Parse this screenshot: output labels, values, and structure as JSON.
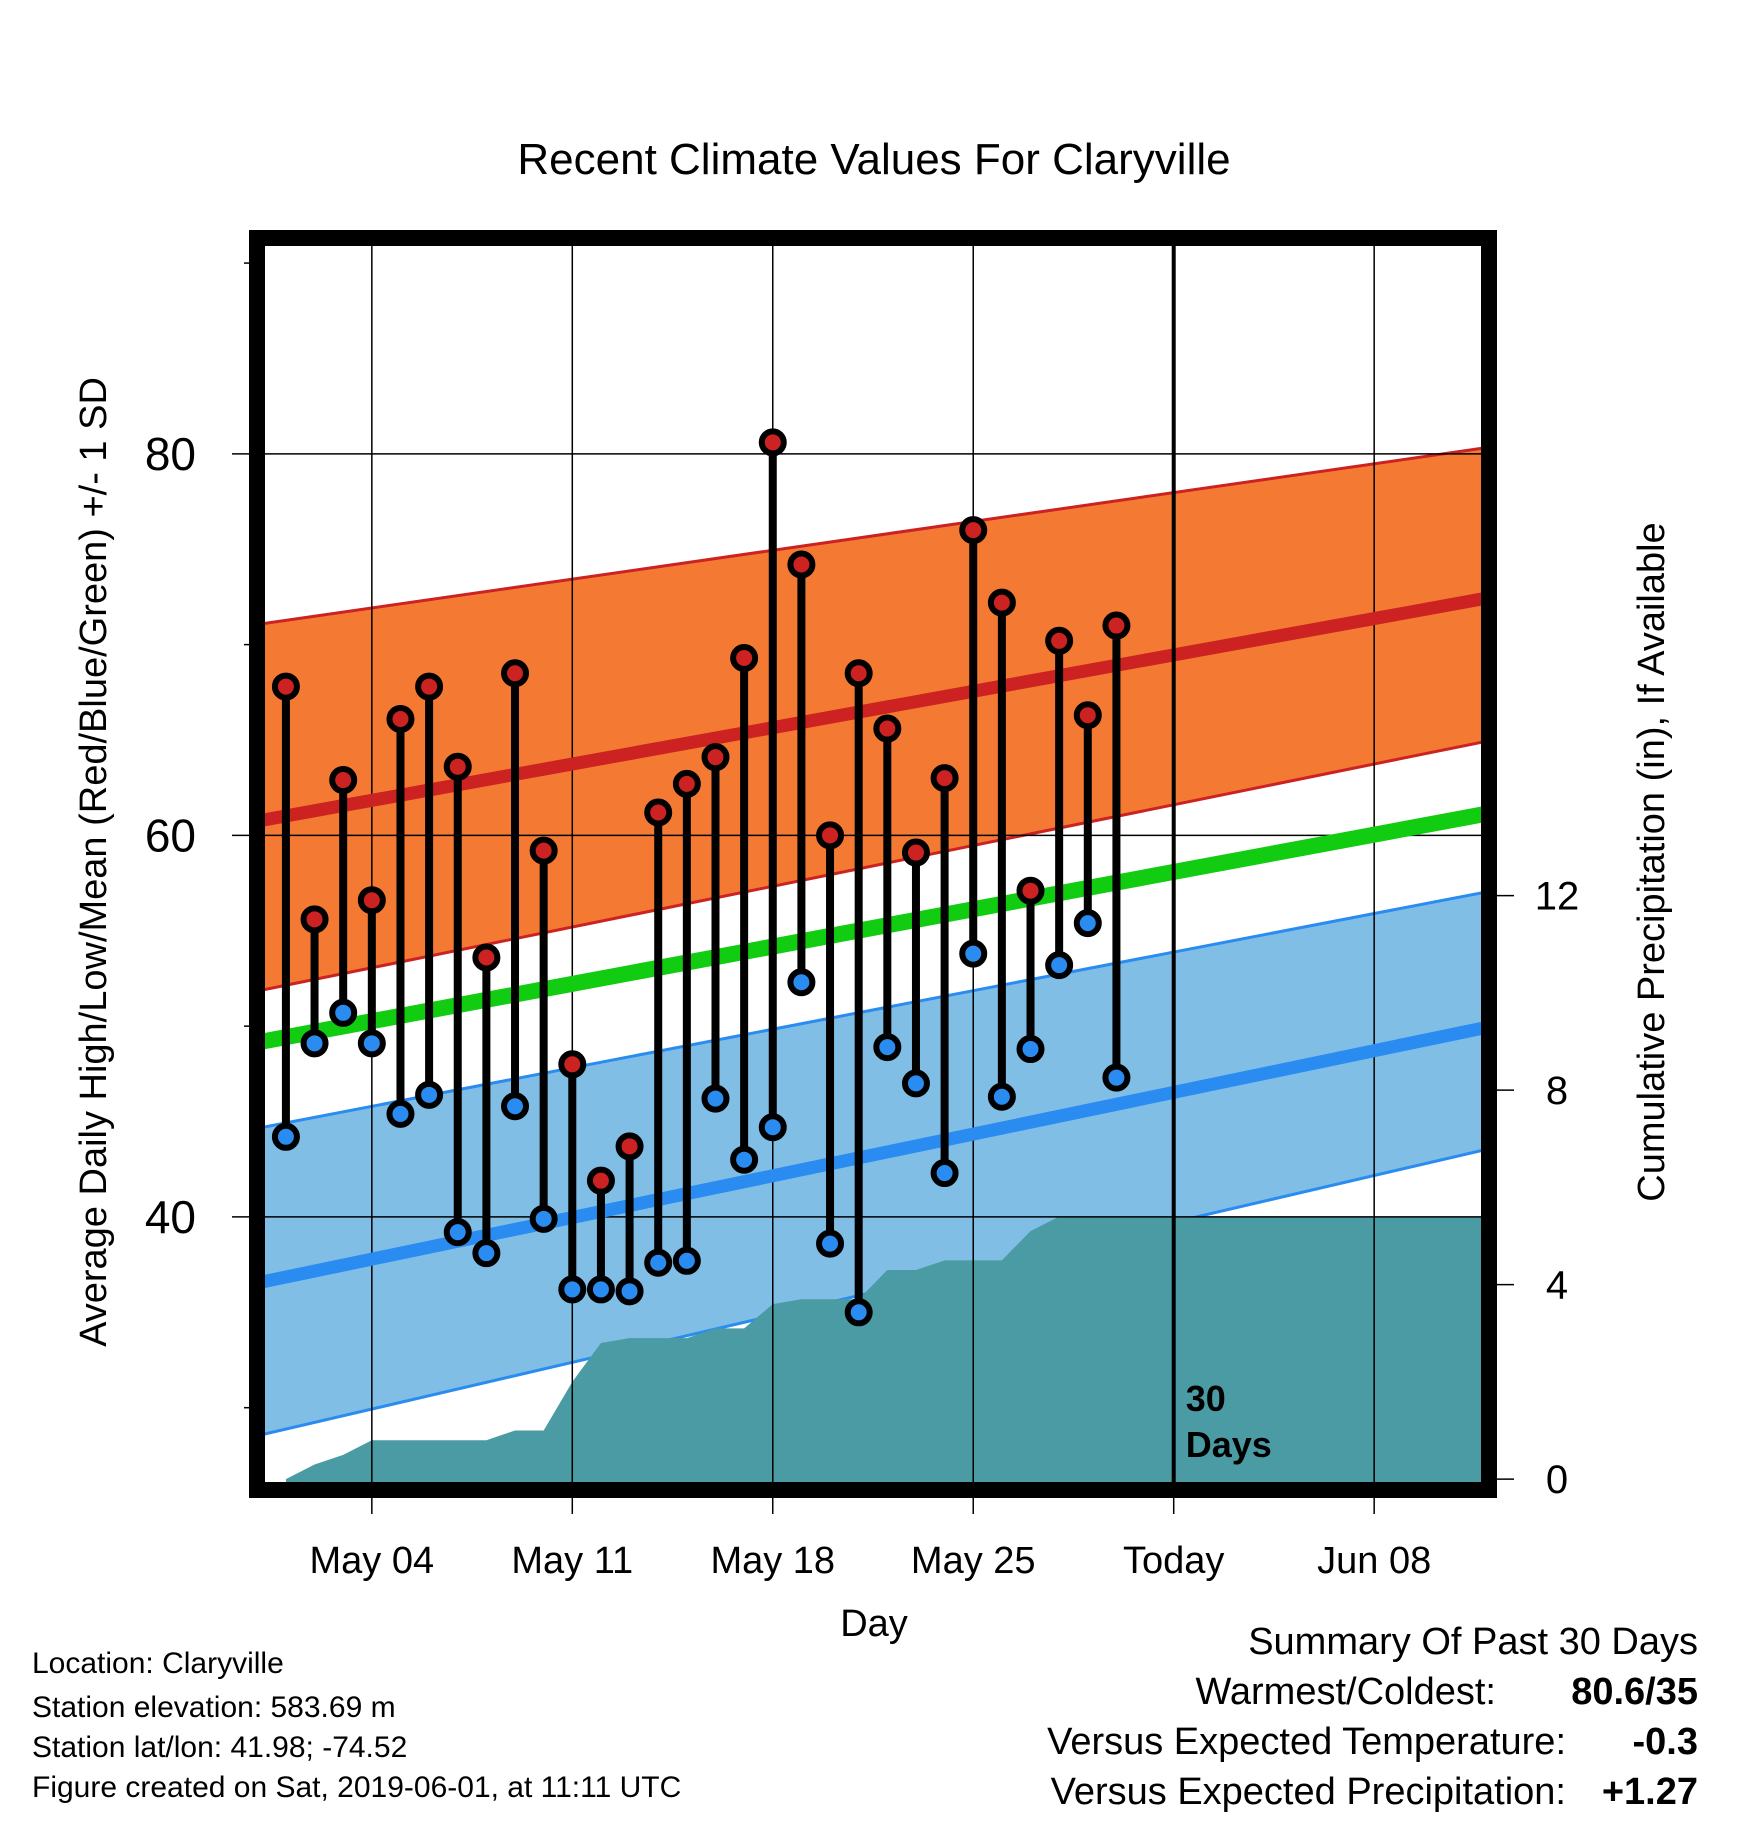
{
  "chart_data": {
    "type": "line",
    "title": "Recent Climate Values For Claryville",
    "xlabel": "Day",
    "ylabel_left": "Average Daily High/Low/Mean (Red/Blue/Green) +/- 1 SD",
    "ylabel_right": "Cumulative Precipitation (in), If Available",
    "x_tick_labels": [
      "May 04",
      "May 11",
      "May 18",
      "May 25",
      "Today",
      "Jun 08"
    ],
    "x_tick_days": [
      4,
      11,
      18,
      25,
      32,
      39
    ],
    "xlim": [
      0.2,
      42.8
    ],
    "y_left_lim": [
      26,
      91
    ],
    "y_left_ticks": [
      40,
      60,
      80
    ],
    "y_right_lim": [
      -0.1,
      25.4
    ],
    "y_right_ticks": [
      0,
      4,
      8,
      12
    ],
    "today_day": 32,
    "today_label": "30\nDays",
    "days": [
      1,
      2,
      3,
      4,
      5,
      6,
      7,
      8,
      9,
      10,
      11,
      12,
      13,
      14,
      15,
      16,
      17,
      18,
      19,
      20,
      21,
      22,
      23,
      24,
      25,
      26,
      27,
      28,
      29,
      30
    ],
    "observed_high": [
      67.8,
      55.6,
      62.9,
      56.6,
      66.1,
      67.8,
      63.6,
      53.6,
      68.5,
      59.2,
      48.0,
      41.9,
      43.7,
      61.2,
      62.7,
      64.1,
      69.3,
      80.6,
      74.2,
      60.0,
      68.5,
      65.6,
      59.1,
      63.0,
      76.0,
      72.2,
      57.1,
      70.2,
      66.3,
      71.0
    ],
    "observed_low": [
      44.2,
      49.1,
      50.7,
      49.1,
      45.4,
      46.4,
      39.2,
      38.1,
      45.8,
      39.9,
      36.2,
      36.2,
      36.1,
      37.6,
      37.7,
      46.2,
      43.0,
      44.7,
      52.3,
      38.6,
      35.0,
      48.9,
      47.0,
      42.3,
      53.8,
      46.3,
      48.8,
      53.2,
      55.4,
      47.3
    ],
    "normal_high": {
      "start": 60.8,
      "end": 72.4
    },
    "normal_high_sd_upper": {
      "start": 71.1,
      "end": 80.3
    },
    "normal_high_sd_lower": {
      "start": 51.9,
      "end": 64.9
    },
    "normal_mean": {
      "start": 49.2,
      "end": 61.1
    },
    "normal_low": {
      "start": 36.6,
      "end": 49.9
    },
    "normal_low_sd_upper": {
      "start": 44.7,
      "end": 57.0
    },
    "normal_low_sd_lower": {
      "start": 28.6,
      "end": 43.5
    },
    "cumulative_precip": {
      "x": [
        1,
        2.0,
        3.0,
        4.0,
        5.0,
        6.0,
        7.0,
        8.0,
        9.0,
        10.0,
        11.0,
        12.0,
        13.0,
        14.0,
        15.0,
        16.0,
        17.0,
        18.0,
        19.0,
        20.0,
        21.0,
        22.0,
        23.0,
        24.0,
        25.0,
        26.0,
        27.0,
        28.0,
        29.0,
        30.0,
        31.0,
        32.0,
        42.8
      ],
      "y": [
        0.0,
        0.3,
        0.5,
        0.8,
        0.8,
        0.8,
        0.8,
        0.8,
        1.0,
        1.0,
        2.0,
        2.8,
        2.9,
        2.9,
        2.9,
        3.1,
        3.1,
        3.6,
        3.7,
        3.7,
        3.7,
        4.3,
        4.3,
        4.5,
        4.5,
        4.5,
        5.1,
        5.4,
        5.4,
        5.4,
        5.4,
        5.4,
        5.4
      ]
    },
    "colors": {
      "high": "#cc2222",
      "high_band": "#f47a33",
      "mean": "#11cc11",
      "low": "#2a8cf0",
      "low_band": "#80bee6",
      "precip": "#4a9ba3"
    }
  },
  "summary": {
    "heading": "Summary Of Past 30 Days",
    "warmest_coldest_label": "Warmest/Coldest:",
    "warmest_coldest_value": "80.6/35",
    "temp_label": "Versus Expected Temperature:",
    "temp_value": "-0.3",
    "temp_value_color": "#2a8cf0",
    "precip_label": "Versus Expected Precipitation:",
    "precip_value": "+1.27",
    "precip_value_color": "#11bb11"
  },
  "info": {
    "location": "Location: Claryville",
    "elevation": "Station elevation: 583.69 m",
    "latlon": "Station lat/lon: 41.98; -74.52",
    "created": "Figure created on Sat, 2019-06-01, at 11:11 UTC"
  }
}
